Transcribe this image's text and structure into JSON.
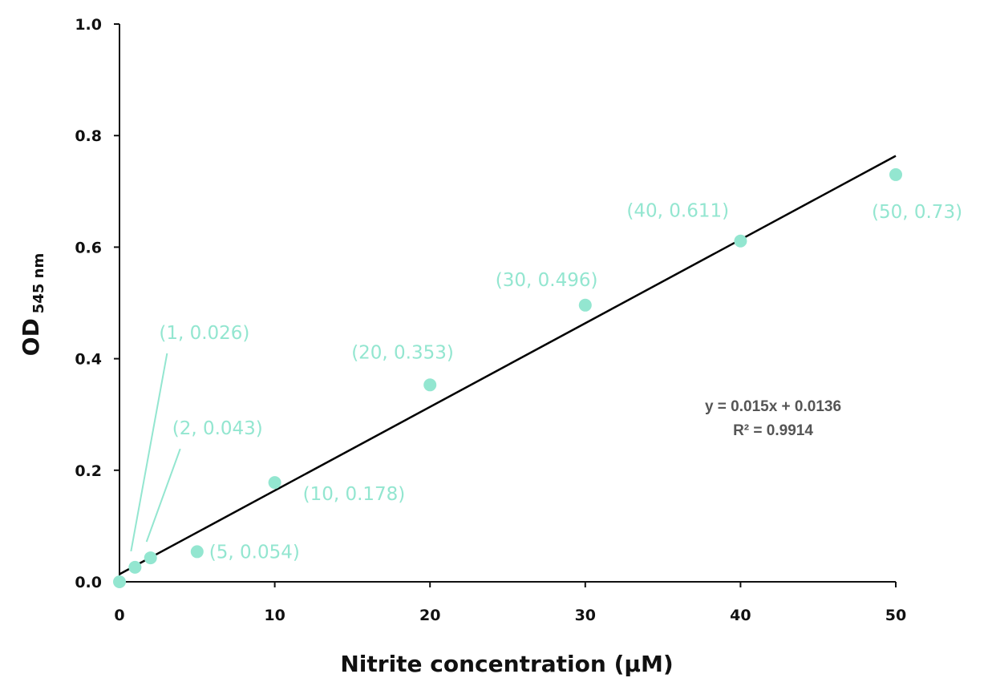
{
  "chart_data": {
    "type": "scatter",
    "title": "",
    "xlabel": "Nitrite concentration (µM)",
    "ylabel": "OD",
    "ylabel_subscript": "545 nm",
    "xlim": [
      0,
      50
    ],
    "ylim": [
      0,
      1.0
    ],
    "x_ticks": [
      "0",
      "10",
      "20",
      "30",
      "40",
      "50"
    ],
    "y_ticks": [
      "0.0",
      "0.2",
      "0.4",
      "0.6",
      "0.8",
      "1.0"
    ],
    "grid": false,
    "legend": "none",
    "point_color": "#93e6d0",
    "line_color": "#000000",
    "points": [
      {
        "x": 0,
        "y": 0.0,
        "label": ""
      },
      {
        "x": 1,
        "y": 0.026,
        "label": "(1, 0.026)"
      },
      {
        "x": 2,
        "y": 0.043,
        "label": "(2, 0.043)"
      },
      {
        "x": 5,
        "y": 0.054,
        "label": "(5, 0.054)"
      },
      {
        "x": 10,
        "y": 0.178,
        "label": "(10, 0.178)"
      },
      {
        "x": 20,
        "y": 0.353,
        "label": "(20, 0.353)"
      },
      {
        "x": 30,
        "y": 0.496,
        "label": "(30, 0.496)"
      },
      {
        "x": 40,
        "y": 0.611,
        "label": "(40, 0.611)"
      },
      {
        "x": 50,
        "y": 0.73,
        "label": "(50, 0.73)"
      }
    ],
    "trendline": {
      "slope": 0.015,
      "intercept": 0.0136,
      "x_range": [
        0,
        50
      ],
      "equation": "y = 0.015x + 0.0136",
      "r_squared": "R² = 0.9914"
    }
  }
}
